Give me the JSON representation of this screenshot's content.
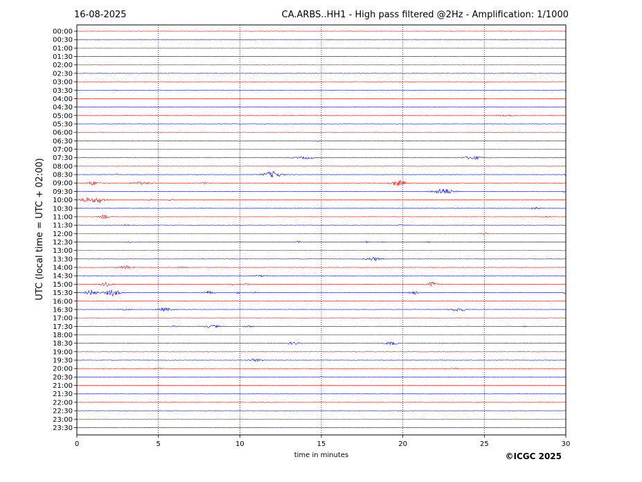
{
  "header": {
    "date": "16-08-2025",
    "title": "CA.ARBS..HH1 - High pass filtered @2Hz - Amplification: 1/1000"
  },
  "footer": {
    "copyright": "©ICGC 2025"
  },
  "chart_data": {
    "type": "line",
    "xlabel": "time in minutes",
    "ylabel": "UTC (local time = UTC + 02:00)",
    "xlim": [
      0,
      30
    ],
    "xticks": [
      0,
      5,
      10,
      15,
      20,
      25,
      30
    ],
    "grid": "vertical dotted lines every 5 minutes",
    "trace_colors": [
      "#ff0000",
      "#0000ff"
    ],
    "grid_color": "#00008b",
    "rows": [
      {
        "label": "00:00",
        "bursts": []
      },
      {
        "label": "00:30",
        "bursts": []
      },
      {
        "label": "01:00",
        "bursts": []
      },
      {
        "label": "01:30",
        "bursts": []
      },
      {
        "label": "02:00",
        "bursts": []
      },
      {
        "label": "02:30",
        "bursts": []
      },
      {
        "label": "03:00",
        "bursts": []
      },
      {
        "label": "03:30",
        "bursts": []
      },
      {
        "label": "04:00",
        "bursts": []
      },
      {
        "label": "04:30",
        "bursts": []
      },
      {
        "label": "05:00",
        "bursts": [
          {
            "t": 26.3,
            "w": 1.0,
            "a": 1.5
          }
        ]
      },
      {
        "label": "05:30",
        "bursts": []
      },
      {
        "label": "06:00",
        "bursts": []
      },
      {
        "label": "06:30",
        "bursts": [
          {
            "t": 14.8,
            "w": 0.2,
            "a": 1.0
          }
        ]
      },
      {
        "label": "07:00",
        "bursts": []
      },
      {
        "label": "07:30",
        "bursts": [
          {
            "t": 14.0,
            "w": 1.5,
            "a": 1.5
          },
          {
            "t": 24.3,
            "w": 1.2,
            "a": 2.5
          }
        ]
      },
      {
        "label": "08:00",
        "bursts": []
      },
      {
        "label": "08:30",
        "bursts": [
          {
            "t": 2.4,
            "w": 0.3,
            "a": 1.0
          },
          {
            "t": 12.0,
            "w": 1.2,
            "a": 4.5
          },
          {
            "t": 30.0,
            "w": 0.2,
            "a": 2.0
          }
        ]
      },
      {
        "label": "09:00",
        "bursts": [
          {
            "t": 1.0,
            "w": 0.7,
            "a": 3.0
          },
          {
            "t": 4.0,
            "w": 1.2,
            "a": 2.0
          },
          {
            "t": 7.8,
            "w": 0.3,
            "a": 1.5
          },
          {
            "t": 19.7,
            "w": 1.0,
            "a": 4.0
          }
        ]
      },
      {
        "label": "09:30",
        "bursts": [
          {
            "t": 22.5,
            "w": 1.2,
            "a": 4.5
          },
          {
            "t": 29.9,
            "w": 0.2,
            "a": 2.0
          }
        ]
      },
      {
        "label": "10:00",
        "bursts": [
          {
            "t": 0.5,
            "w": 0.6,
            "a": 3.5
          },
          {
            "t": 1.3,
            "w": 1.0,
            "a": 4.0
          },
          {
            "t": 4.5,
            "w": 0.3,
            "a": 1.0
          },
          {
            "t": 5.8,
            "w": 0.5,
            "a": 1.0
          }
        ]
      },
      {
        "label": "10:30",
        "bursts": [
          {
            "t": 28.2,
            "w": 0.7,
            "a": 1.5
          }
        ]
      },
      {
        "label": "11:00",
        "bursts": [
          {
            "t": 1.7,
            "w": 0.7,
            "a": 2.5
          },
          {
            "t": 28.8,
            "w": 0.5,
            "a": 1.0
          }
        ]
      },
      {
        "label": "11:30",
        "bursts": [
          {
            "t": 3.0,
            "w": 0.3,
            "a": 1.0
          },
          {
            "t": 19.8,
            "w": 0.3,
            "a": 1.0
          }
        ]
      },
      {
        "label": "12:00",
        "bursts": [
          {
            "t": 25.0,
            "w": 0.7,
            "a": 1.0
          }
        ]
      },
      {
        "label": "12:30",
        "bursts": [
          {
            "t": 3.2,
            "w": 0.3,
            "a": 1.0
          },
          {
            "t": 13.6,
            "w": 0.4,
            "a": 1.5
          },
          {
            "t": 17.8,
            "w": 0.3,
            "a": 1.5
          },
          {
            "t": 18.7,
            "w": 0.2,
            "a": 1.0
          },
          {
            "t": 21.6,
            "w": 0.3,
            "a": 1.0
          }
        ]
      },
      {
        "label": "13:00",
        "bursts": []
      },
      {
        "label": "13:30",
        "bursts": [
          {
            "t": 18.2,
            "w": 1.0,
            "a": 2.5
          }
        ]
      },
      {
        "label": "14:00",
        "bursts": [
          {
            "t": 3.0,
            "w": 0.8,
            "a": 2.5
          },
          {
            "t": 6.5,
            "w": 0.6,
            "a": 1.0
          }
        ]
      },
      {
        "label": "14:30",
        "bursts": [
          {
            "t": 11.3,
            "w": 0.8,
            "a": 1.0
          }
        ]
      },
      {
        "label": "15:00",
        "bursts": [
          {
            "t": 1.8,
            "w": 0.7,
            "a": 3.0
          },
          {
            "t": 9.6,
            "w": 0.4,
            "a": 1.5
          },
          {
            "t": 10.4,
            "w": 0.4,
            "a": 1.5
          },
          {
            "t": 21.8,
            "w": 0.7,
            "a": 3.5
          }
        ]
      },
      {
        "label": "15:30",
        "bursts": [
          {
            "t": 0.9,
            "w": 0.8,
            "a": 4.0
          },
          {
            "t": 2.2,
            "w": 1.0,
            "a": 4.5
          },
          {
            "t": 8.1,
            "w": 0.8,
            "a": 2.0
          },
          {
            "t": 9.9,
            "w": 0.3,
            "a": 1.5
          },
          {
            "t": 10.9,
            "w": 0.3,
            "a": 1.5
          },
          {
            "t": 20.7,
            "w": 0.6,
            "a": 2.5
          },
          {
            "t": 29.9,
            "w": 0.2,
            "a": 1.5
          }
        ]
      },
      {
        "label": "16:00",
        "bursts": []
      },
      {
        "label": "16:30",
        "bursts": [
          {
            "t": 3.0,
            "w": 0.8,
            "a": 1.0
          },
          {
            "t": 5.4,
            "w": 1.0,
            "a": 2.5
          },
          {
            "t": 23.4,
            "w": 1.0,
            "a": 2.5
          }
        ]
      },
      {
        "label": "17:00",
        "bursts": []
      },
      {
        "label": "17:30",
        "bursts": [
          {
            "t": 6.0,
            "w": 0.5,
            "a": 1.0
          },
          {
            "t": 8.3,
            "w": 1.0,
            "a": 2.0
          },
          {
            "t": 10.5,
            "w": 0.8,
            "a": 1.0
          },
          {
            "t": 27.5,
            "w": 0.3,
            "a": 0.8
          }
        ]
      },
      {
        "label": "18:00",
        "bursts": []
      },
      {
        "label": "18:30",
        "bursts": [
          {
            "t": 13.3,
            "w": 0.8,
            "a": 2.0
          },
          {
            "t": 19.3,
            "w": 0.7,
            "a": 2.5
          }
        ]
      },
      {
        "label": "19:00",
        "bursts": []
      },
      {
        "label": "19:30",
        "bursts": [
          {
            "t": 11.0,
            "w": 1.0,
            "a": 2.0
          }
        ]
      },
      {
        "label": "20:00",
        "bursts": [
          {
            "t": 5.0,
            "w": 0.6,
            "a": 1.0
          },
          {
            "t": 23.2,
            "w": 0.5,
            "a": 1.0
          }
        ]
      },
      {
        "label": "20:30",
        "bursts": [
          {
            "t": 15.0,
            "w": 0.3,
            "a": 0.8
          }
        ]
      },
      {
        "label": "21:00",
        "bursts": []
      },
      {
        "label": "21:30",
        "bursts": []
      },
      {
        "label": "22:00",
        "bursts": []
      },
      {
        "label": "22:30",
        "bursts": []
      },
      {
        "label": "23:00",
        "bursts": []
      },
      {
        "label": "23:30",
        "bursts": []
      }
    ]
  }
}
